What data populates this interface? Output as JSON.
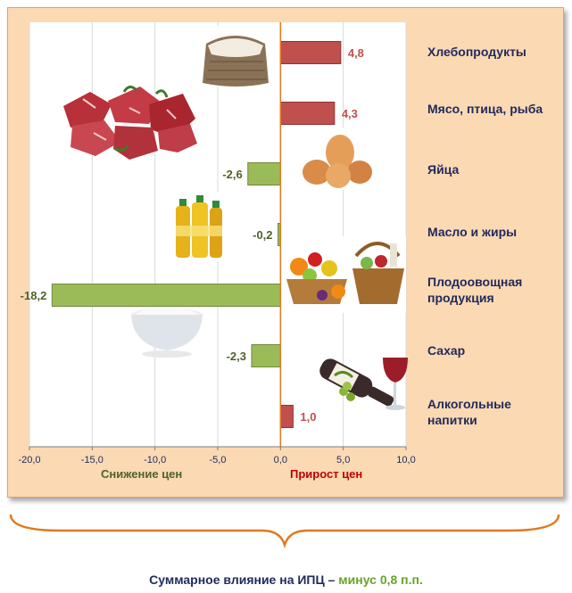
{
  "chart_data": {
    "type": "bar",
    "orientation": "horizontal",
    "categories": [
      "Хлебопродукты",
      "Мясо, птица, рыба",
      "Яйца",
      "Масло и жиры",
      "Плодоовощная продукция",
      "Сахар",
      "Алкогольные напитки"
    ],
    "values": [
      4.8,
      4.3,
      -2.6,
      -0.2,
      -18.2,
      -2.3,
      1.0
    ],
    "value_labels": [
      "4,8",
      "4,3",
      "-2,6",
      "-0,2",
      "-18,2",
      "-2,3",
      "1,0"
    ],
    "xlim": [
      -20,
      10
    ],
    "xticks": [
      -20,
      -15,
      -10,
      -5,
      0,
      5,
      10
    ],
    "xtick_labels": [
      "-20,0",
      "-15,0",
      "-10,0",
      "-5,0",
      "0,0",
      "5,0",
      "10,0"
    ],
    "negative_label": "Снижение цен",
    "positive_label": "Прирост цен",
    "colors": {
      "positive": "#c0504d",
      "negative": "#9bbb59",
      "positive_text": "#c0504d",
      "negative_text": "#4f6228"
    },
    "grid": true
  },
  "summary": {
    "prefix": "Суммарное влияние на ИПЦ – ",
    "highlight": "минус 0,8 п.п."
  },
  "pictures": [
    "rice-sack",
    "raw-meat",
    "eggs",
    "oil-bottles",
    "fruit-basket",
    "sugar-bowl",
    "wine-bottle"
  ]
}
